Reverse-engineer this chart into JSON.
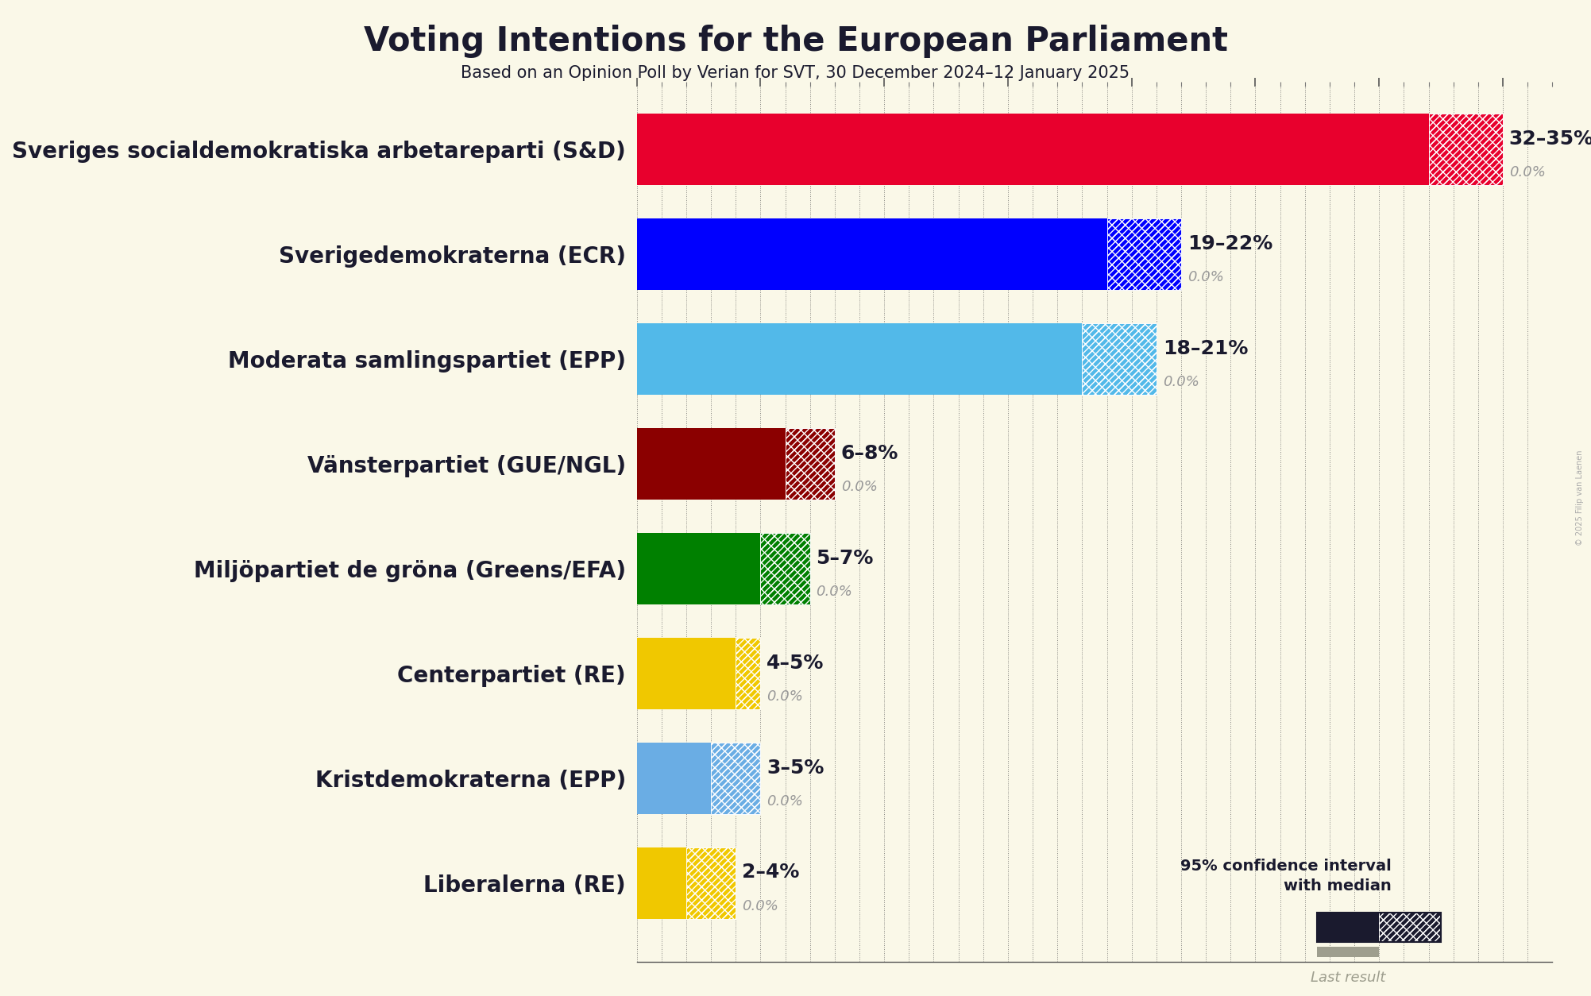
{
  "title": "Voting Intentions for the European Parliament",
  "subtitle": "Based on an Opinion Poll by Verian for SVT, 30 December 2024–12 January 2025",
  "copyright": "© 2025 Filip van Laenen",
  "background_color": "#faf8e8",
  "parties": [
    {
      "name": "Sveriges socialdemokratiska arbetareparti (S&D)",
      "color": "#e8002d",
      "median": 32,
      "low": 32,
      "high": 35,
      "last": 0.0,
      "range_label": "32–35%",
      "last_label": "0.0%"
    },
    {
      "name": "Sverigedemokraterna (ECR)",
      "color": "#0000ff",
      "median": 19,
      "low": 19,
      "high": 22,
      "last": 0.0,
      "range_label": "19–22%",
      "last_label": "0.0%"
    },
    {
      "name": "Moderata samlingspartiet (EPP)",
      "color": "#52b9e9",
      "median": 18,
      "low": 18,
      "high": 21,
      "last": 0.0,
      "range_label": "18–21%",
      "last_label": "0.0%"
    },
    {
      "name": "Vänsterpartiet (GUE/NGL)",
      "color": "#8b0000",
      "median": 6,
      "low": 6,
      "high": 8,
      "last": 0.0,
      "range_label": "6–8%",
      "last_label": "0.0%"
    },
    {
      "name": "Miljöpartiet de gröna (Greens/EFA)",
      "color": "#008000",
      "median": 5,
      "low": 5,
      "high": 7,
      "last": 0.0,
      "range_label": "5–7%",
      "last_label": "0.0%"
    },
    {
      "name": "Centerpartiet (RE)",
      "color": "#f0c800",
      "median": 4,
      "low": 4,
      "high": 5,
      "last": 0.0,
      "range_label": "4–5%",
      "last_label": "0.0%"
    },
    {
      "name": "Kristdemokraterna (EPP)",
      "color": "#6aade4",
      "median": 3,
      "low": 3,
      "high": 5,
      "last": 0.0,
      "range_label": "3–5%",
      "last_label": "0.0%"
    },
    {
      "name": "Liberalerna (RE)",
      "color": "#f0c800",
      "median": 2,
      "low": 2,
      "high": 4,
      "last": 0.0,
      "range_label": "2–4%",
      "last_label": "0.0%"
    }
  ],
  "xlim": [
    0,
    37
  ],
  "bar_height": 0.68,
  "last_bar_height": 0.15,
  "last_bar_color": "#9e9e8e",
  "hatch_color_light": "#ffffff",
  "label_color_main": "#1a1a2e",
  "label_color_secondary": "#999999",
  "grid_color": "#555555",
  "legend_color": "#1a1a2e",
  "range_label_fontsize": 18,
  "last_label_fontsize": 13,
  "party_label_fontsize": 20
}
